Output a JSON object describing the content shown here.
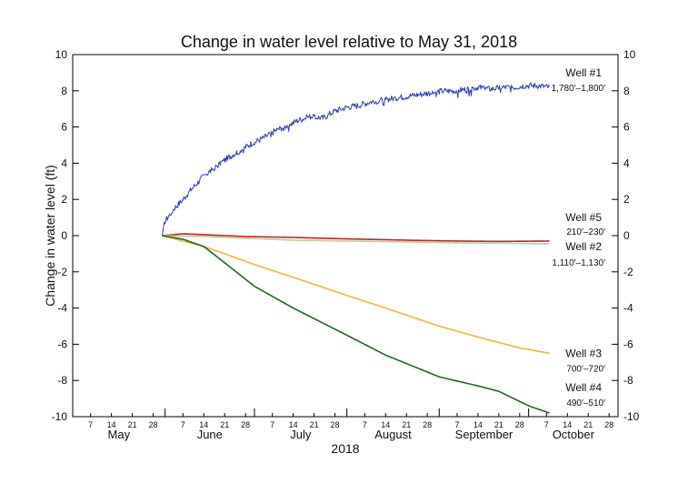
{
  "chart_data": {
    "type": "line",
    "title": "Change in water level relative to May 31, 2018",
    "xlabel": "2018",
    "ylabel": "Change in water level (ft)",
    "xlim": [
      "2018-05-01",
      "2018-10-31"
    ],
    "ylim": [
      -10,
      10
    ],
    "y_ticks": [
      -10,
      -8,
      -6,
      -4,
      -2,
      0,
      2,
      4,
      6,
      8,
      10
    ],
    "y_axis_right": true,
    "grid": false,
    "months": [
      "May",
      "June",
      "July",
      "August",
      "September",
      "October"
    ],
    "day_ticks": [
      {
        "date": "2018-05-07",
        "label": "7"
      },
      {
        "date": "2018-05-14",
        "label": "14"
      },
      {
        "date": "2018-05-21",
        "label": "21"
      },
      {
        "date": "2018-05-28",
        "label": "28"
      },
      {
        "date": "2018-06-07",
        "label": "7"
      },
      {
        "date": "2018-06-14",
        "label": "14"
      },
      {
        "date": "2018-06-21",
        "label": "21"
      },
      {
        "date": "2018-06-28",
        "label": "28"
      },
      {
        "date": "2018-07-07",
        "label": "7"
      },
      {
        "date": "2018-07-14",
        "label": "14"
      },
      {
        "date": "2018-07-21",
        "label": "21"
      },
      {
        "date": "2018-07-28",
        "label": "28"
      },
      {
        "date": "2018-08-07",
        "label": "7"
      },
      {
        "date": "2018-08-14",
        "label": "14"
      },
      {
        "date": "2018-08-21",
        "label": "21"
      },
      {
        "date": "2018-08-28",
        "label": "28"
      },
      {
        "date": "2018-09-07",
        "label": "7"
      },
      {
        "date": "2018-09-14",
        "label": "14"
      },
      {
        "date": "2018-09-21",
        "label": "21"
      },
      {
        "date": "2018-09-28",
        "label": "28"
      },
      {
        "date": "2018-10-07",
        "label": "7"
      },
      {
        "date": "2018-10-14",
        "label": "14"
      },
      {
        "date": "2018-10-21",
        "label": "21"
      },
      {
        "date": "2018-10-28",
        "label": "28"
      }
    ],
    "series": [
      {
        "name": "Well #1",
        "depth": "1,780′–1,800′",
        "color": "#2b3cc4",
        "noise": true,
        "points": [
          [
            "2018-05-31",
            0
          ],
          [
            "2018-06-01",
            0.8
          ],
          [
            "2018-06-04",
            1.5
          ],
          [
            "2018-06-07",
            2.0
          ],
          [
            "2018-06-10",
            2.6
          ],
          [
            "2018-06-14",
            3.3
          ],
          [
            "2018-06-18",
            3.8
          ],
          [
            "2018-06-22",
            4.3
          ],
          [
            "2018-06-26",
            4.7
          ],
          [
            "2018-06-30",
            5.1
          ],
          [
            "2018-07-04",
            5.4
          ],
          [
            "2018-07-08",
            5.8
          ],
          [
            "2018-07-12",
            6.1
          ],
          [
            "2018-07-16",
            6.4
          ],
          [
            "2018-07-20",
            6.6
          ],
          [
            "2018-07-24",
            6.5
          ],
          [
            "2018-07-28",
            6.9
          ],
          [
            "2018-08-01",
            7.1
          ],
          [
            "2018-08-05",
            7.2
          ],
          [
            "2018-08-09",
            7.4
          ],
          [
            "2018-08-13",
            7.5
          ],
          [
            "2018-08-17",
            7.6
          ],
          [
            "2018-08-21",
            7.7
          ],
          [
            "2018-08-25",
            7.8
          ],
          [
            "2018-08-29",
            7.9
          ],
          [
            "2018-09-02",
            8.0
          ],
          [
            "2018-09-06",
            8.0
          ],
          [
            "2018-09-10",
            8.1
          ],
          [
            "2018-09-14",
            8.2
          ],
          [
            "2018-09-18",
            8.1
          ],
          [
            "2018-09-22",
            8.2
          ],
          [
            "2018-09-26",
            8.2
          ],
          [
            "2018-09-30",
            8.3
          ],
          [
            "2018-10-04",
            8.3
          ],
          [
            "2018-10-08",
            8.2
          ]
        ]
      },
      {
        "name": "Well #5",
        "depth": "210′–230′",
        "color": "#cc1f1f",
        "noise": false,
        "points": [
          [
            "2018-05-31",
            0
          ],
          [
            "2018-06-07",
            0.1
          ],
          [
            "2018-06-14",
            0.05
          ],
          [
            "2018-06-28",
            -0.05
          ],
          [
            "2018-07-14",
            -0.1
          ],
          [
            "2018-08-01",
            -0.18
          ],
          [
            "2018-08-21",
            -0.25
          ],
          [
            "2018-09-07",
            -0.3
          ],
          [
            "2018-09-21",
            -0.32
          ],
          [
            "2018-10-08",
            -0.3
          ]
        ]
      },
      {
        "name": "Well #2",
        "depth": "1,110′–1,130′",
        "color": "#a9d9a1",
        "noise": false,
        "points": [
          [
            "2018-05-31",
            0
          ],
          [
            "2018-06-14",
            -0.05
          ],
          [
            "2018-06-28",
            -0.15
          ],
          [
            "2018-07-14",
            -0.25
          ],
          [
            "2018-08-01",
            -0.3
          ],
          [
            "2018-08-21",
            -0.35
          ],
          [
            "2018-09-07",
            -0.4
          ],
          [
            "2018-09-21",
            -0.42
          ],
          [
            "2018-10-08",
            -0.45
          ]
        ]
      },
      {
        "name": "Well #3",
        "depth": "700′–720′",
        "color": "#f0b63a",
        "noise": false,
        "points": [
          [
            "2018-05-31",
            0
          ],
          [
            "2018-06-07",
            -0.3
          ],
          [
            "2018-06-14",
            -0.6
          ],
          [
            "2018-06-21",
            -1.0
          ],
          [
            "2018-07-01",
            -1.6
          ],
          [
            "2018-07-14",
            -2.3
          ],
          [
            "2018-08-01",
            -3.3
          ],
          [
            "2018-08-14",
            -4.0
          ],
          [
            "2018-09-01",
            -5.0
          ],
          [
            "2018-09-14",
            -5.6
          ],
          [
            "2018-09-28",
            -6.2
          ],
          [
            "2018-10-08",
            -6.5
          ]
        ]
      },
      {
        "name": "Well #4",
        "depth": "490′–510′",
        "color": "#1c6b1c",
        "noise": false,
        "points": [
          [
            "2018-05-31",
            0
          ],
          [
            "2018-06-07",
            -0.2
          ],
          [
            "2018-06-14",
            -0.6
          ],
          [
            "2018-06-21",
            -1.5
          ],
          [
            "2018-07-01",
            -2.8
          ],
          [
            "2018-07-14",
            -4.0
          ],
          [
            "2018-08-01",
            -5.5
          ],
          [
            "2018-08-14",
            -6.6
          ],
          [
            "2018-09-01",
            -7.8
          ],
          [
            "2018-09-14",
            -8.3
          ],
          [
            "2018-09-21",
            -8.6
          ],
          [
            "2018-10-01",
            -9.4
          ],
          [
            "2018-10-08",
            -9.8
          ]
        ]
      }
    ]
  }
}
